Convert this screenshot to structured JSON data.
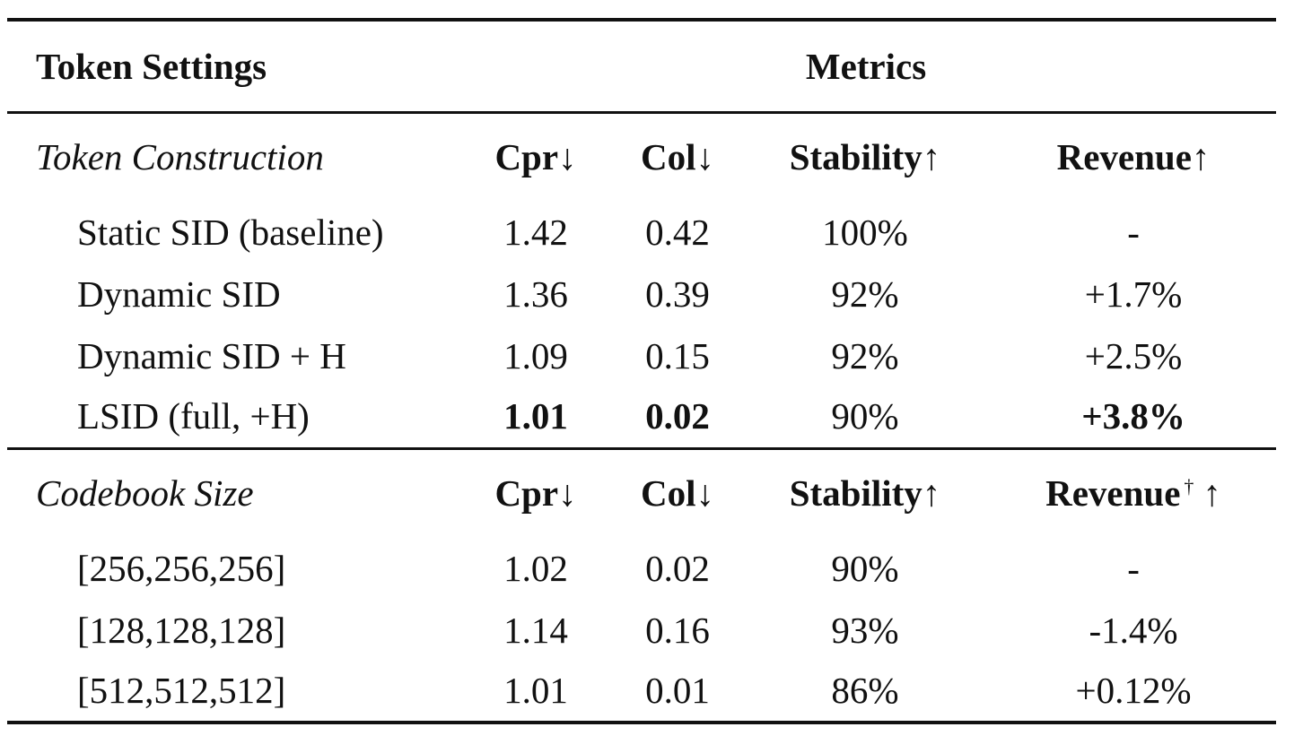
{
  "header": {
    "settings_label": "Token Settings",
    "metrics_label": "Metrics"
  },
  "groups": [
    {
      "label": "Token Construction",
      "columns": [
        "Cpr↓",
        "Col↓",
        "Stability↑",
        "Revenue↑"
      ],
      "rows": [
        {
          "name": "Static SID (baseline)",
          "cpr": "1.42",
          "col": "0.42",
          "stability": "100%",
          "revenue": "-"
        },
        {
          "name": "Dynamic SID",
          "cpr": "1.36",
          "col": "0.39",
          "stability": "92%",
          "revenue": "+1.7%"
        },
        {
          "name": "Dynamic SID + H",
          "cpr": "1.09",
          "col": "0.15",
          "stability": "92%",
          "revenue": "+2.5%"
        },
        {
          "name": "LSID (full, +H)",
          "cpr": "1.01",
          "col": "0.02",
          "stability": "90%",
          "revenue": "+3.8%"
        }
      ]
    },
    {
      "label": "Codebook Size",
      "columns": [
        "Cpr↓",
        "Col↓",
        "Stability↑",
        "Revenue"
      ],
      "revenue_dagger": "†",
      "revenue_arrow": "↑",
      "rows": [
        {
          "name": "[256,256,256]",
          "cpr": "1.02",
          "col": "0.02",
          "stability": "90%",
          "revenue": "-"
        },
        {
          "name": "[128,128,128]",
          "cpr": "1.14",
          "col": "0.16",
          "stability": "93%",
          "revenue": "-1.4%"
        },
        {
          "name": "[512,512,512]",
          "cpr": "1.01",
          "col": "0.01",
          "stability": "86%",
          "revenue": "+0.12%"
        }
      ]
    }
  ]
}
